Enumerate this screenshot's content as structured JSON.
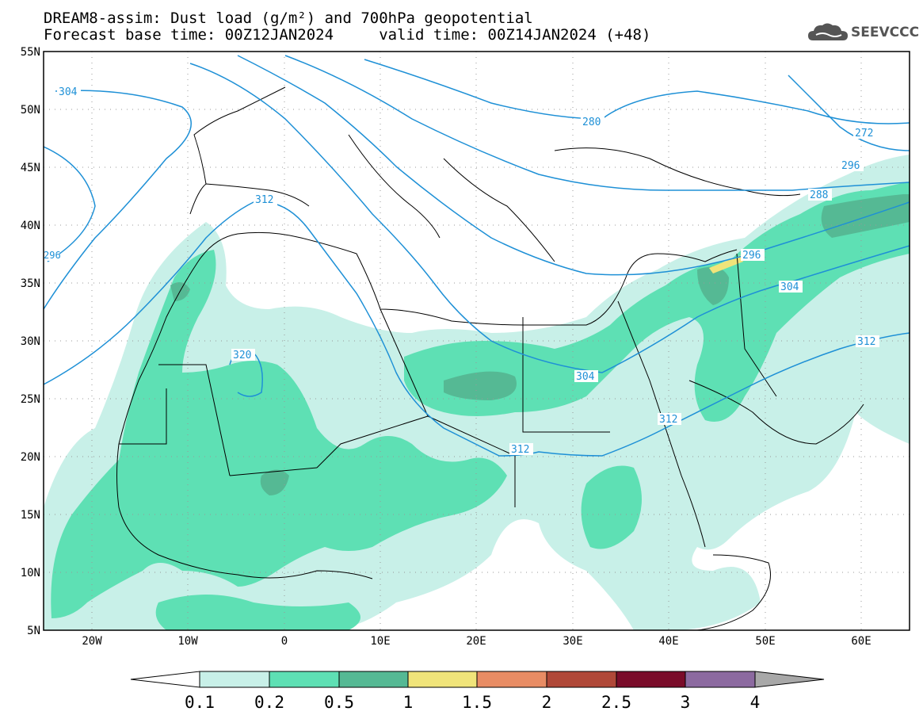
{
  "header": {
    "title_line1": "DREAM8-assim: Dust load (g/m²) and 700hPa geopotential",
    "title_line2": "Forecast base time: 00Z12JAN2024     valid time: 00Z14JAN2024 (+48)",
    "logo_text": "SEEVCCC",
    "logo_icon": "cloud-icon"
  },
  "map": {
    "lon_range": [
      -25,
      65
    ],
    "lat_range": [
      5,
      55
    ],
    "lat_labels": [
      "55N",
      "50N",
      "45N",
      "40N",
      "35N",
      "30N",
      "25N",
      "20N",
      "15N",
      "10N",
      "5N"
    ],
    "lon_labels": [
      "20W",
      "10W",
      "0",
      "10E",
      "20E",
      "30E",
      "40E",
      "50E",
      "60E"
    ],
    "contour_color": "#1e90d6",
    "contour_labels": [
      {
        "text": "304"
      },
      {
        "text": "312"
      },
      {
        "text": "320"
      },
      {
        "text": "296"
      },
      {
        "text": "280"
      },
      {
        "text": "272"
      },
      {
        "text": "288"
      },
      {
        "text": "296"
      },
      {
        "text": "304"
      },
      {
        "text": "304"
      },
      {
        "text": "312"
      },
      {
        "text": "312"
      },
      {
        "text": "312"
      },
      {
        "text": "296"
      }
    ]
  },
  "colorbar": {
    "labels": [
      "0.1",
      "0.2",
      "0.5",
      "1",
      "1.5",
      "2",
      "2.5",
      "3",
      "4"
    ],
    "colors": [
      "#c8f0e8",
      "#5ee0b4",
      "#55b994",
      "#f0e47a",
      "#e88c64",
      "#b04838",
      "#7a0c2a",
      "#8c6aa0",
      "#a8a8a8"
    ]
  }
}
